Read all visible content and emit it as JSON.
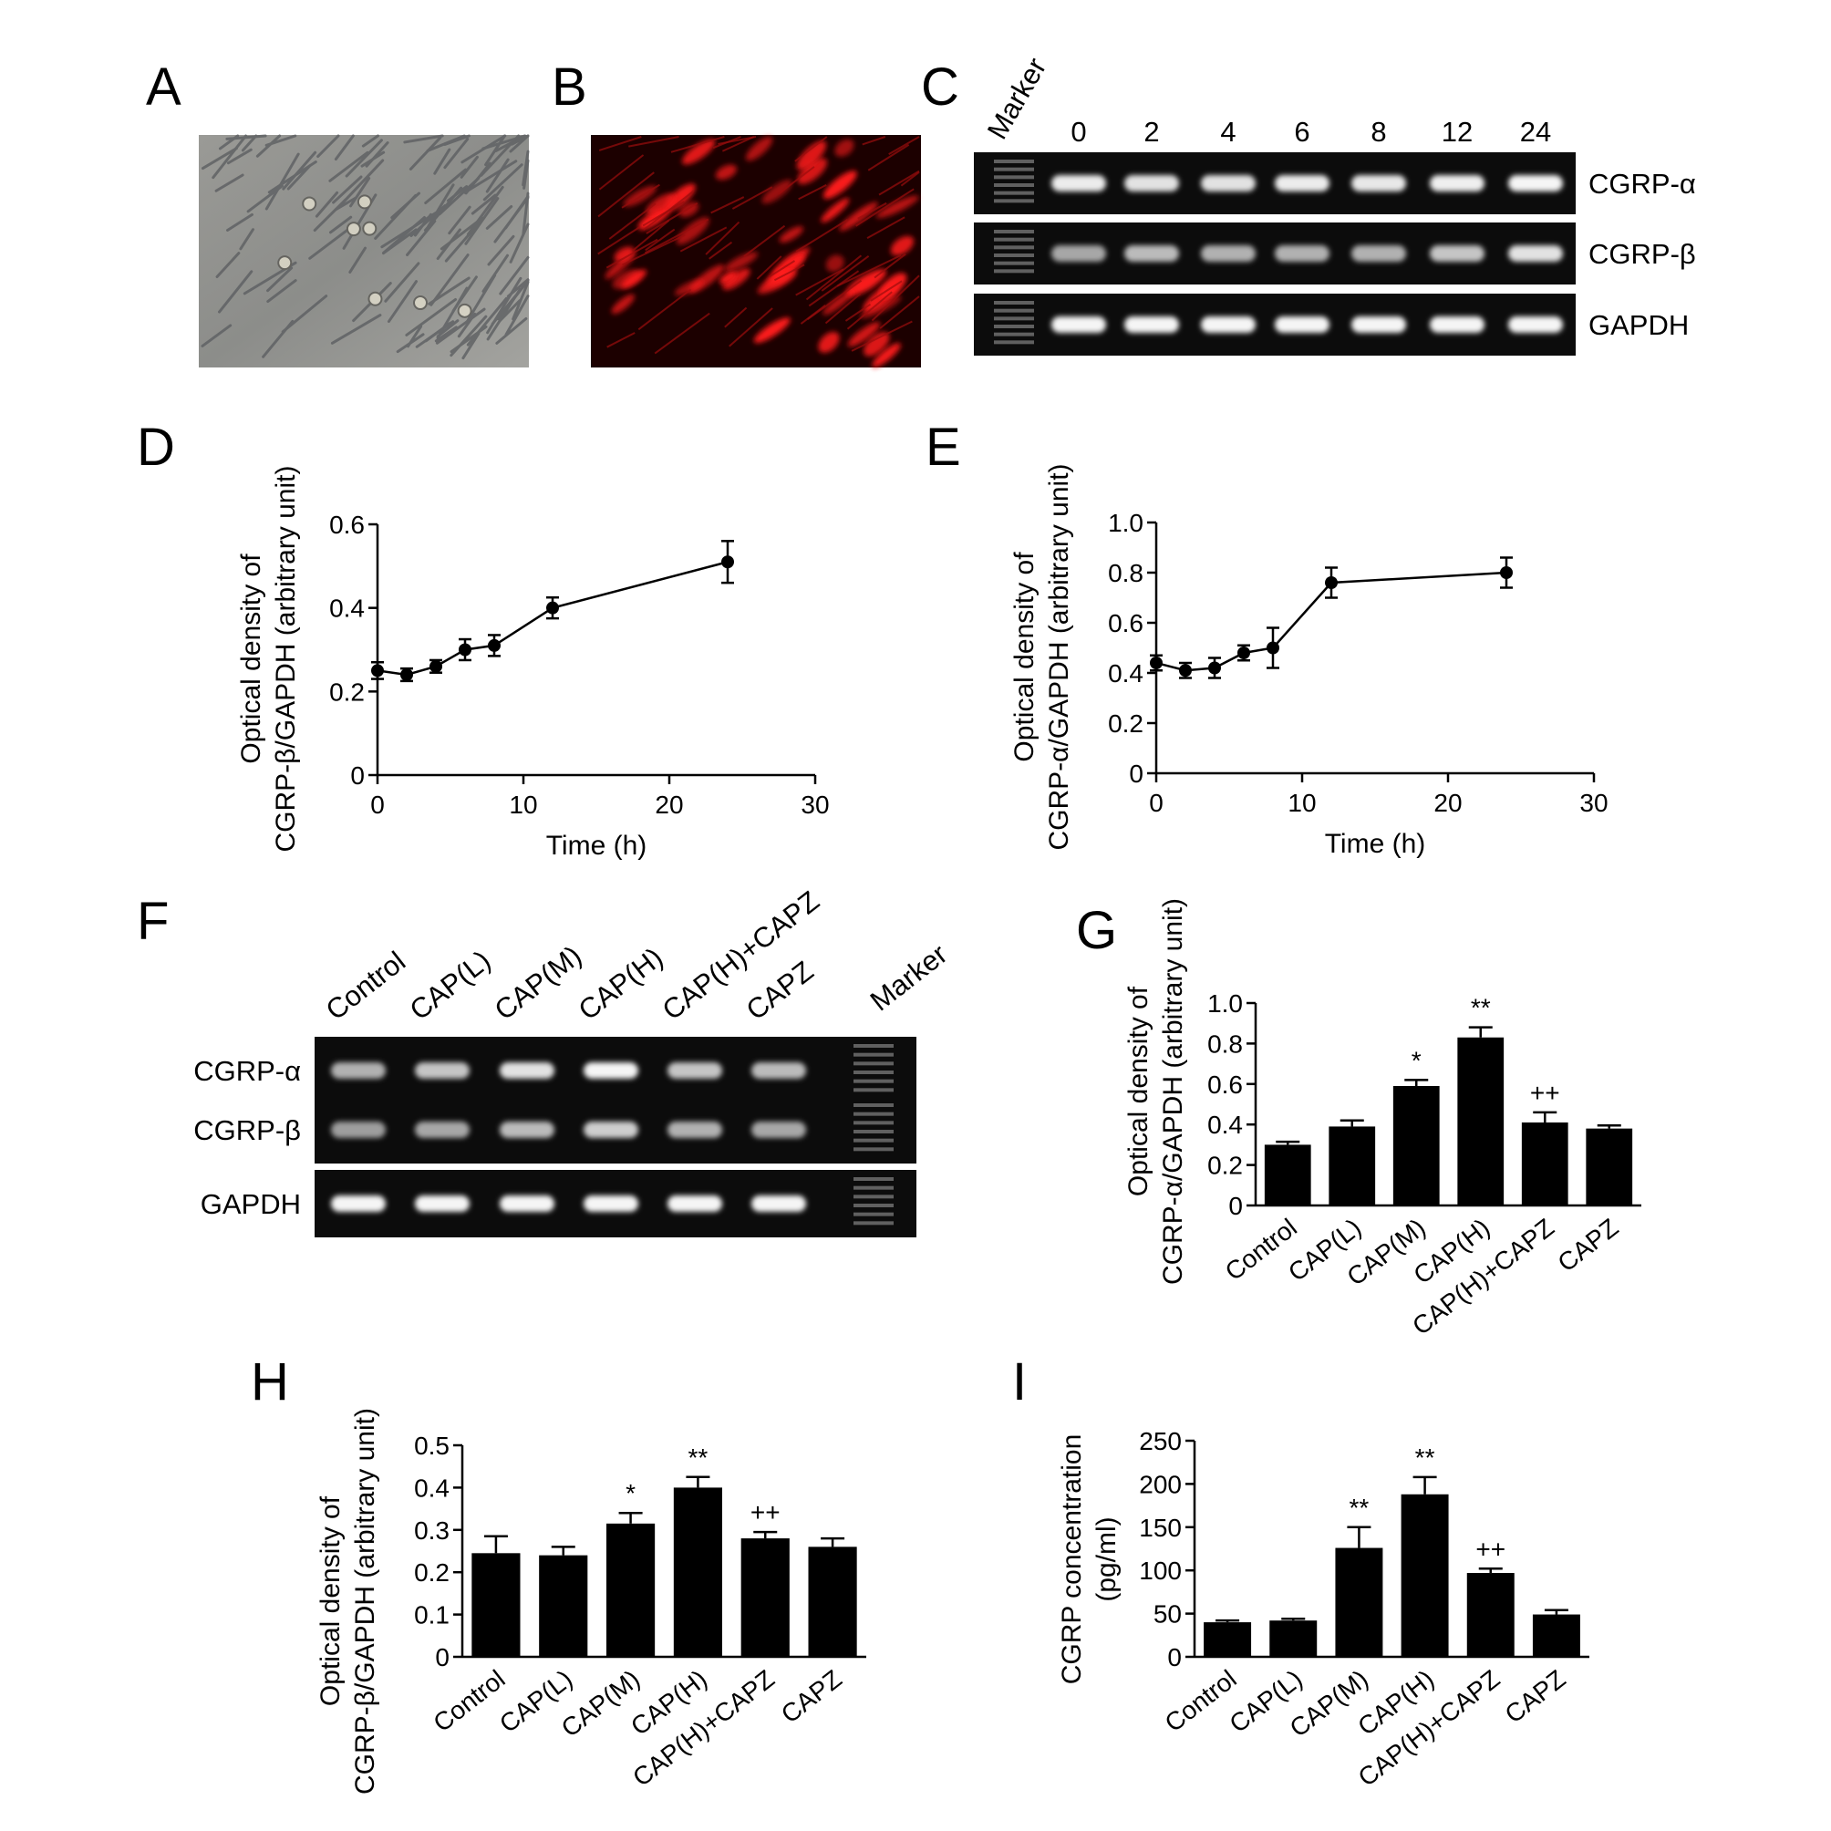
{
  "panel_letters": [
    "A",
    "B",
    "C",
    "D",
    "E",
    "F",
    "G",
    "H",
    "I"
  ],
  "gel_c": {
    "marker_label": "Marker",
    "lanes": [
      "0",
      "2",
      "4",
      "6",
      "8",
      "12",
      "24"
    ],
    "rows": [
      "CGRP-α",
      "CGRP-β",
      "GAPDH"
    ],
    "band_intensity": {
      "CGRP-α": [
        0.9,
        0.85,
        0.85,
        0.9,
        0.88,
        0.92,
        0.95
      ],
      "CGRP-β": [
        0.55,
        0.65,
        0.6,
        0.6,
        0.6,
        0.7,
        0.85
      ],
      "GAPDH": [
        0.95,
        0.95,
        0.95,
        0.95,
        0.95,
        0.95,
        0.95
      ]
    }
  },
  "gel_f": {
    "lanes": [
      "Control",
      "CAP(L)",
      "CAP(M)",
      "CAP(H)",
      "CAP(H)+CAPZ",
      "CAPZ"
    ],
    "marker_label": "Marker",
    "rows": [
      "CGRP-α",
      "CGRP-β",
      "GAPDH"
    ],
    "band_intensity": {
      "CGRP-α": [
        0.6,
        0.7,
        0.85,
        0.95,
        0.7,
        0.65
      ],
      "CGRP-β": [
        0.5,
        0.55,
        0.65,
        0.75,
        0.6,
        0.55
      ],
      "GAPDH": [
        0.95,
        0.95,
        0.95,
        0.95,
        0.95,
        0.95
      ]
    }
  },
  "chart_data": [
    {
      "panel": "D",
      "type": "line",
      "x": [
        0,
        2,
        4,
        6,
        8,
        12,
        24
      ],
      "y": [
        0.25,
        0.24,
        0.26,
        0.3,
        0.31,
        0.4,
        0.51
      ],
      "err": [
        0.02,
        0.015,
        0.015,
        0.025,
        0.025,
        0.025,
        0.05
      ],
      "xlabel": "Time (h)",
      "ylabel_lines": [
        "Optical density of",
        "CGRP-β/GAPDH (arbitrary unit)"
      ],
      "xlim": [
        0,
        30
      ],
      "ylim": [
        0,
        0.6
      ],
      "xticks": [
        0,
        10,
        20,
        30
      ],
      "xtick_labels": [
        "0",
        "10",
        "20",
        "30"
      ],
      "yticks": [
        0,
        0.2,
        0.4,
        0.6
      ],
      "ytick_labels": [
        "0",
        "0.2",
        "0.4",
        "0.6"
      ]
    },
    {
      "panel": "E",
      "type": "line",
      "x": [
        0,
        2,
        4,
        6,
        8,
        12,
        24
      ],
      "y": [
        0.44,
        0.41,
        0.42,
        0.48,
        0.5,
        0.76,
        0.8
      ],
      "err": [
        0.03,
        0.03,
        0.04,
        0.03,
        0.08,
        0.06,
        0.06
      ],
      "xlabel": "Time (h)",
      "ylabel_lines": [
        "Optical density of",
        "CGRP-α/GAPDH (arbitrary unit)"
      ],
      "xlim": [
        0,
        30
      ],
      "ylim": [
        0,
        1.0
      ],
      "xticks": [
        0,
        10,
        20,
        30
      ],
      "xtick_labels": [
        "0",
        "10",
        "20",
        "30"
      ],
      "yticks": [
        0,
        0.2,
        0.4,
        0.6,
        0.8,
        1.0
      ],
      "ytick_labels": [
        "0",
        "0.2",
        "0.4",
        "0.6",
        "0.8",
        "1.0"
      ]
    },
    {
      "panel": "G",
      "type": "bar",
      "categories": [
        "Control",
        "CAP(L)",
        "CAP(M)",
        "CAP(H)",
        "CAP(H)+CAPZ",
        "CAPZ"
      ],
      "values": [
        0.3,
        0.39,
        0.59,
        0.83,
        0.41,
        0.38
      ],
      "err": [
        0.015,
        0.03,
        0.03,
        0.05,
        0.05,
        0.015
      ],
      "annotations": [
        "",
        "",
        "*",
        "**",
        "++",
        ""
      ],
      "ylabel_lines": [
        "Optical density of",
        "CGRP-α/GAPDH (arbitrary unit)"
      ],
      "ylim": [
        0,
        1.0
      ],
      "yticks": [
        0,
        0.2,
        0.4,
        0.6,
        0.8,
        1.0
      ],
      "ytick_labels": [
        "0",
        "0.2",
        "0.4",
        "0.6",
        "0.8",
        "1.0"
      ]
    },
    {
      "panel": "H",
      "type": "bar",
      "categories": [
        "Control",
        "CAP(L)",
        "CAP(M)",
        "CAP(H)",
        "CAP(H)+CAPZ",
        "CAPZ"
      ],
      "values": [
        0.245,
        0.24,
        0.315,
        0.4,
        0.28,
        0.26
      ],
      "err": [
        0.04,
        0.02,
        0.025,
        0.025,
        0.015,
        0.02
      ],
      "annotations": [
        "",
        "",
        "*",
        "**",
        "++",
        ""
      ],
      "ylabel_lines": [
        "Optical density of",
        "CGRP-β/GAPDH (arbitrary unit)"
      ],
      "ylim": [
        0,
        0.5
      ],
      "yticks": [
        0,
        0.1,
        0.2,
        0.3,
        0.4,
        0.5
      ],
      "ytick_labels": [
        "0",
        "0.1",
        "0.2",
        "0.3",
        "0.4",
        "0.5"
      ]
    },
    {
      "panel": "I",
      "type": "bar",
      "categories": [
        "Control",
        "CAP(L)",
        "CAP(M)",
        "CAP(H)",
        "CAP(H)+CAPZ",
        "CAPZ"
      ],
      "values": [
        40,
        42,
        126,
        188,
        97,
        49
      ],
      "err": [
        2,
        2,
        24,
        20,
        5,
        5
      ],
      "annotations": [
        "",
        "",
        "**",
        "**",
        "++",
        ""
      ],
      "ylabel_lines": [
        "CGRP concentration",
        "(pg/ml)"
      ],
      "ylim": [
        0,
        250
      ],
      "yticks": [
        0,
        50,
        100,
        150,
        200,
        250
      ],
      "ytick_labels": [
        "0",
        "50",
        "100",
        "150",
        "200",
        "250"
      ]
    }
  ]
}
